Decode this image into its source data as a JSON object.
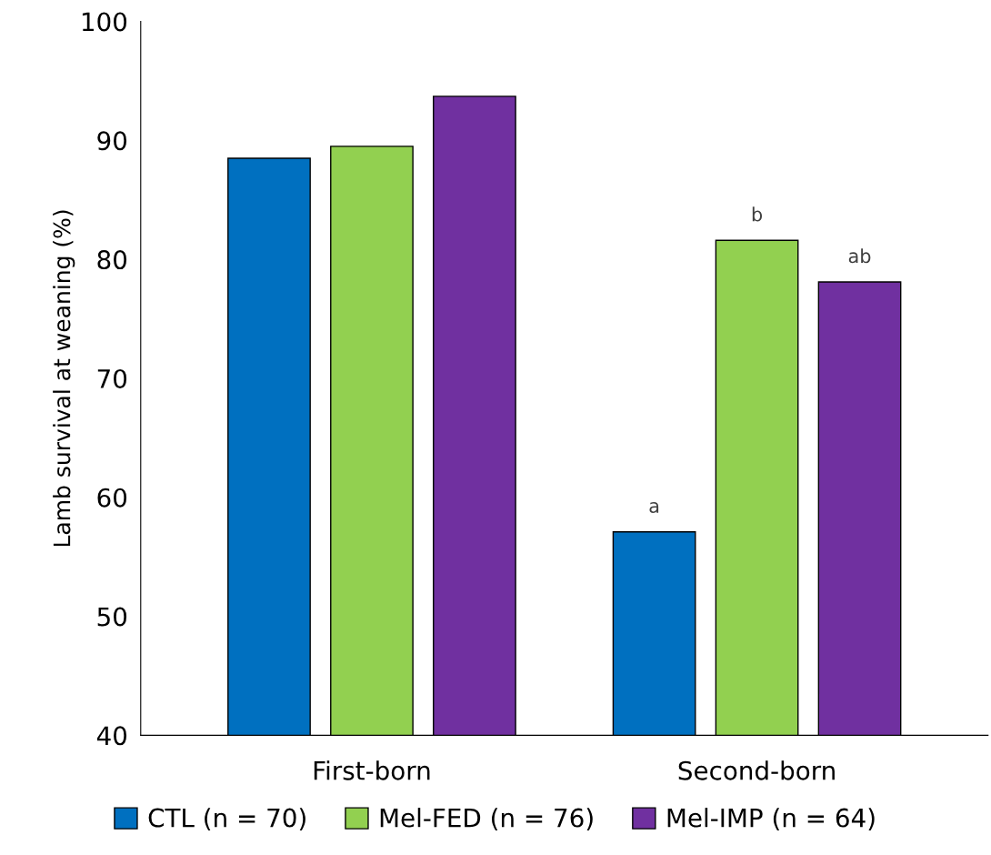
{
  "chart_data": {
    "type": "bar",
    "ylabel": "Lamb survival at weaning (%)",
    "categories": [
      "First-born",
      "Second-born"
    ],
    "series": [
      {
        "name": "CTL (n = 70)",
        "color": "#0070c0",
        "values": [
          88.5,
          57.1
        ]
      },
      {
        "name": "Mel-FED (n = 76)",
        "color": "#92d050",
        "values": [
          89.5,
          81.6
        ]
      },
      {
        "name": "Mel-IMP (n = 64)",
        "color": "#7030a0",
        "values": [
          93.7,
          78.1
        ]
      }
    ],
    "ylim": [
      40,
      100
    ],
    "yticks": [
      40,
      50,
      60,
      70,
      80,
      90,
      100
    ],
    "annotations": [
      "a",
      "b",
      "ab"
    ],
    "grid": false,
    "legend": "bottom"
  }
}
